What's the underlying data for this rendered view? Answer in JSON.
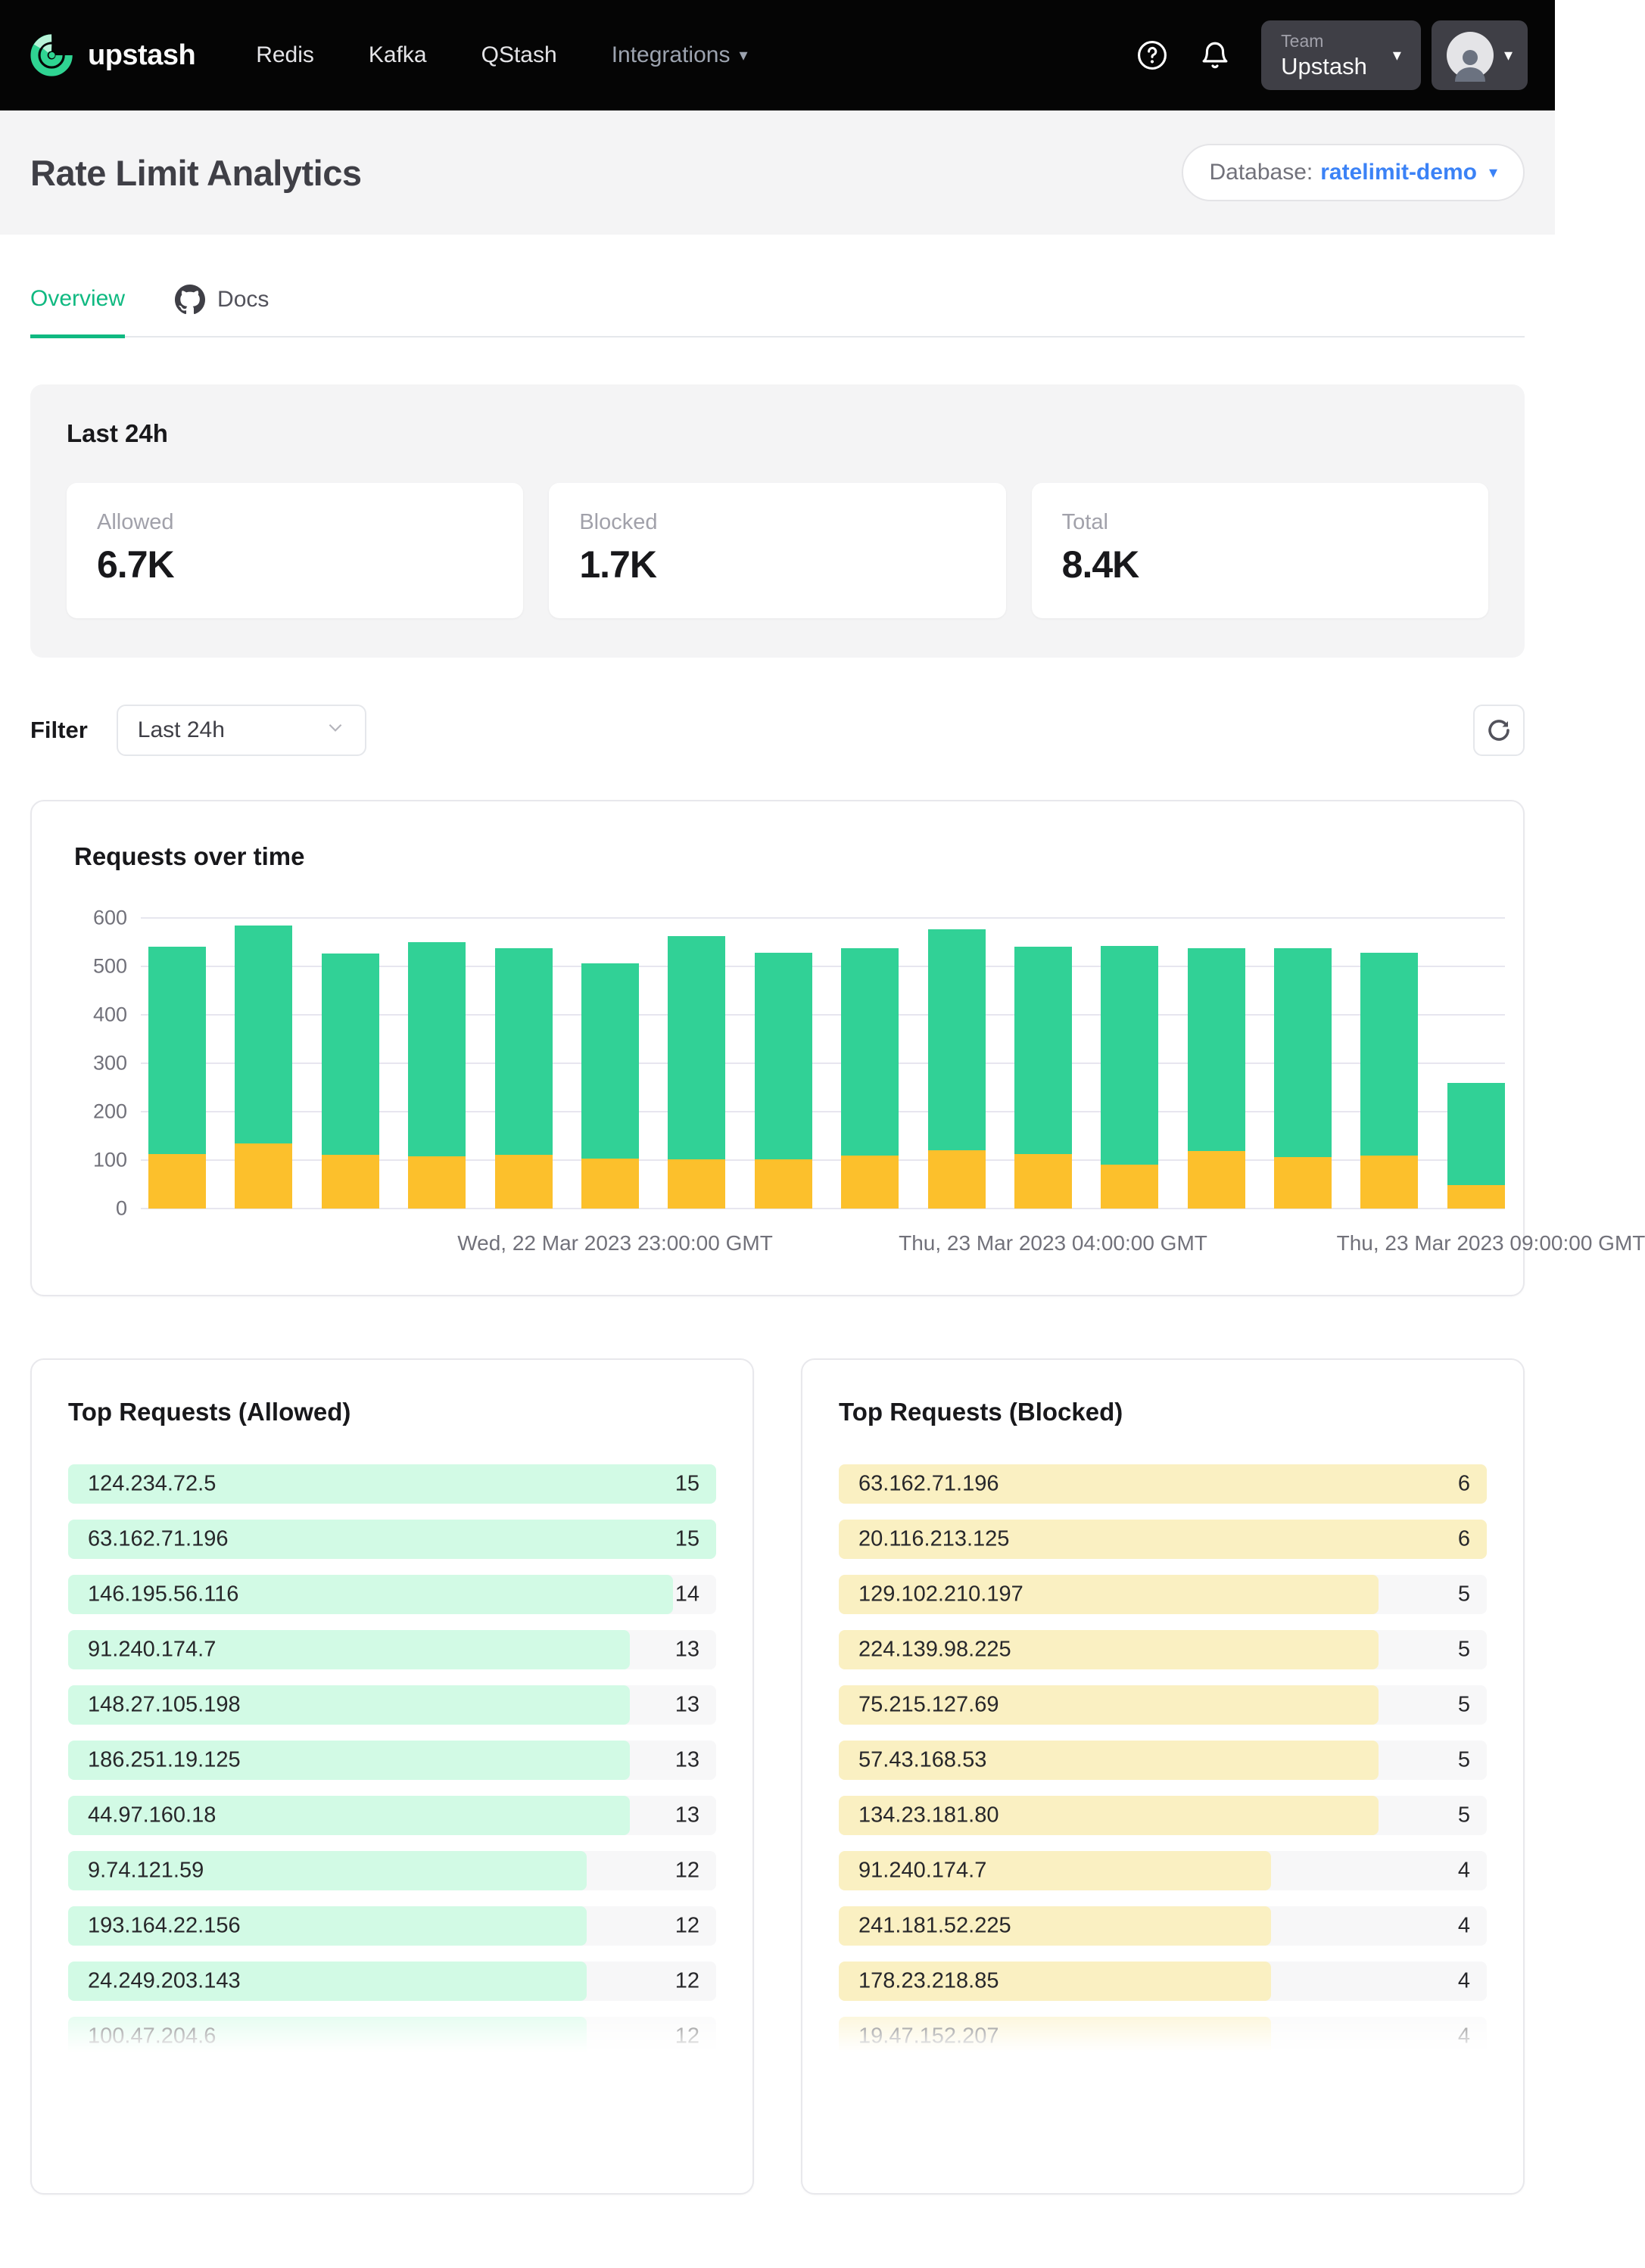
{
  "nav": {
    "brand": "upstash",
    "links": [
      {
        "label": "Redis"
      },
      {
        "label": "Kafka"
      },
      {
        "label": "QStash"
      }
    ],
    "integrations_label": "Integrations",
    "team_label": "Team",
    "team_name": "Upstash"
  },
  "header": {
    "title": "Rate Limit Analytics",
    "database_label": "Database:",
    "database_name": "ratelimit-demo"
  },
  "tabs": {
    "overview": "Overview",
    "docs": "Docs"
  },
  "stats": {
    "title": "Last 24h",
    "cards": [
      {
        "label": "Allowed",
        "value": "6.7K"
      },
      {
        "label": "Blocked",
        "value": "1.7K"
      },
      {
        "label": "Total",
        "value": "8.4K"
      }
    ]
  },
  "filter": {
    "label": "Filter",
    "value": "Last 24h"
  },
  "chart_data": {
    "type": "bar",
    "stacked": true,
    "title": "Requests over time",
    "ylim": [
      0,
      600
    ],
    "yticks_desc": [
      "600",
      "500",
      "400",
      "300",
      "200",
      "100",
      "0"
    ],
    "grid": true,
    "legend": "none",
    "bar_count": 16,
    "series": [
      {
        "name": "blocked",
        "color": "#fcc02c",
        "values": [
          112,
          134,
          111,
          108,
          111,
          103,
          101,
          101,
          109,
          121,
          113,
          91,
          119,
          107,
          110,
          48
        ]
      },
      {
        "name": "allowed",
        "color": "#31d196",
        "values": [
          428,
          451,
          416,
          442,
          426,
          403,
          461,
          427,
          429,
          456,
          427,
          451,
          418,
          430,
          418,
          212
        ]
      }
    ],
    "totals": [
      540,
      585,
      527,
      550,
      537,
      506,
      562,
      528,
      538,
      577,
      540,
      542,
      537,
      537,
      528,
      260
    ],
    "tick_labels": [
      "Wed, 22 Mar 2023 23:00:00 GMT",
      "Thu, 23 Mar 2023 04:00:00 GMT",
      "Thu, 23 Mar 2023 09:00:00 GMT"
    ],
    "tick_positions": [
      5,
      10,
      15
    ]
  },
  "top_allowed": {
    "title": "Top Requests (Allowed)",
    "max": 15,
    "fill_color": "#d2fae5",
    "rows": [
      {
        "ip": "124.234.72.5",
        "value": 15
      },
      {
        "ip": "63.162.71.196",
        "value": 15
      },
      {
        "ip": "146.195.56.116",
        "value": 14
      },
      {
        "ip": "91.240.174.7",
        "value": 13
      },
      {
        "ip": "148.27.105.198",
        "value": 13
      },
      {
        "ip": "186.251.19.125",
        "value": 13
      },
      {
        "ip": "44.97.160.18",
        "value": 13
      },
      {
        "ip": "9.74.121.59",
        "value": 12
      },
      {
        "ip": "193.164.22.156",
        "value": 12
      },
      {
        "ip": "24.249.203.143",
        "value": 12
      },
      {
        "ip": "100.47.204.6",
        "value": 12
      }
    ]
  },
  "top_blocked": {
    "title": "Top Requests (Blocked)",
    "max": 6,
    "fill_color": "#faf0c2",
    "rows": [
      {
        "ip": "63.162.71.196",
        "value": 6
      },
      {
        "ip": "20.116.213.125",
        "value": 6
      },
      {
        "ip": "129.102.210.197",
        "value": 5
      },
      {
        "ip": "224.139.98.225",
        "value": 5
      },
      {
        "ip": "75.215.127.69",
        "value": 5
      },
      {
        "ip": "57.43.168.53",
        "value": 5
      },
      {
        "ip": "134.23.181.80",
        "value": 5
      },
      {
        "ip": "91.240.174.7",
        "value": 4
      },
      {
        "ip": "241.181.52.225",
        "value": 4
      },
      {
        "ip": "178.23.218.85",
        "value": 4
      },
      {
        "ip": "19.47.152.207",
        "value": 4
      }
    ]
  },
  "colors": {
    "accent_green": "#10b981",
    "bar_green": "#31d196",
    "bar_orange": "#fcc02c",
    "link_blue": "#3b82f6",
    "grid": "#e7e6ef"
  }
}
